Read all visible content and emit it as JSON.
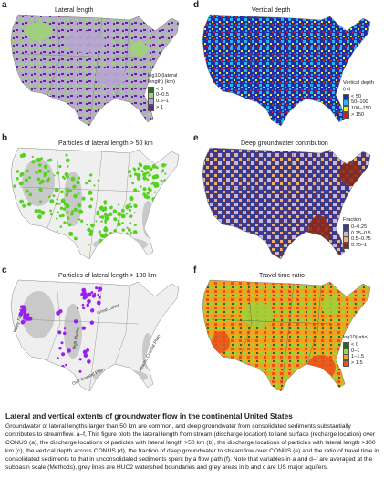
{
  "panels": {
    "a": {
      "label": "a",
      "title": "Lateral length",
      "legend_title": "log10 (lateral length) (km)",
      "legend": [
        {
          "label": "< 0",
          "color": "#1a7a1a"
        },
        {
          "label": "0–0.5",
          "color": "#9fcf7f"
        },
        {
          "label": "0.5–1",
          "color": "#b9a7d2"
        },
        {
          "label": "> 1",
          "color": "#5b2c8f"
        }
      ]
    },
    "b": {
      "label": "b",
      "title": "Particles of lateral length > 50 km",
      "dot_color": "#55d11f"
    },
    "c": {
      "label": "c",
      "title": "Particles of lateral length > 100 km",
      "dot_color": "#9b1ff0",
      "aquifers": [
        "Valley Fill",
        "Great Lakes",
        "High Plains",
        "Gulf Coastal Plain",
        "Atlantic Coastal Plain"
      ]
    },
    "d": {
      "label": "d",
      "title": "Vertical depth",
      "legend_title": "Vertical depth (m)",
      "legend": [
        {
          "label": "< 50",
          "color": "#1f2fa3"
        },
        {
          "label": "50–100",
          "color": "#25b7ee"
        },
        {
          "label": "100–150",
          "color": "#f2ea2b"
        },
        {
          "label": "> 150",
          "color": "#d51d1d"
        }
      ]
    },
    "e": {
      "label": "e",
      "title": "Deep groundwater contribution",
      "legend_title": "Fraction",
      "legend": [
        {
          "label": "0–0.25",
          "color": "#3a3a8f"
        },
        {
          "label": "0.25–0.5",
          "color": "#c7b8d9"
        },
        {
          "label": "0.5–0.75",
          "color": "#f0b26a"
        },
        {
          "label": "0.75–1",
          "color": "#8c2a1a"
        }
      ]
    },
    "f": {
      "label": "f",
      "title": "Travel time ratio",
      "legend_title": "log10(ratio)",
      "legend": [
        {
          "label": "< 0",
          "color": "#1b6d1b"
        },
        {
          "label": "0–1",
          "color": "#9ed23b"
        },
        {
          "label": "1–1.5",
          "color": "#f3a21e"
        },
        {
          "label": "> 1.5",
          "color": "#e9501c"
        }
      ]
    }
  },
  "caption": {
    "title": "Lateral and vertical extents of groundwater flow in the continental United States",
    "body": "Groundwater of lateral lengths larger than 50 km are common, and deep groundwater from consolidated sediments substantially contributes to streamflow. a–f, This figure plots the lateral length from stream (discharge location) to land surface (recharge location) over CONUS (a), the discharge locations of particles with lateral length >50 km (b), the discharge locations of particles with lateral length >100 km (c), the vertical depth across CONUS (d), the fraction of deep groundwater to streamflow over CONUS (e) and the ratio of travel time in consolidated sediments to that in unconsolidated sediments spent by a flow path (f). Note that variables in a and d–f are averaged at the subbasin scale (Methods), grey lines are HUC2 watershed boundaries and grey areas in b and c are US major aquifers."
  }
}
